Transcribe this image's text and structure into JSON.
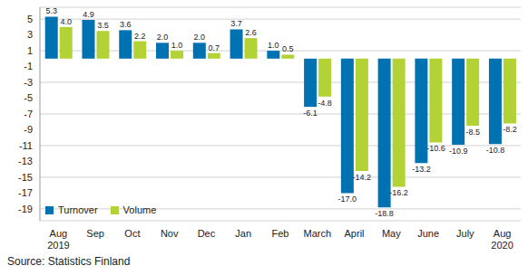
{
  "chart_data": {
    "type": "bar",
    "source": "Source: Statistics Finland",
    "categories": [
      "Aug 2019",
      "Sep",
      "Oct",
      "Nov",
      "Dec",
      "Jan",
      "Feb",
      "March",
      "April",
      "May",
      "June",
      "July",
      "Aug 2020"
    ],
    "series": [
      {
        "name": "Turnover",
        "color": "#0072b1",
        "values": [
          5.3,
          4.9,
          3.6,
          2.0,
          2.0,
          3.7,
          1.0,
          -6.1,
          -17.0,
          -18.8,
          -13.2,
          -10.9,
          -10.8
        ],
        "value_labels": [
          "5.3",
          "4.9",
          "3.6",
          "2.0",
          "2.0",
          "3.7",
          "1.0",
          "-6.1",
          "-17.0",
          "-18.8",
          "-13.2",
          "-10.9",
          "-10.8"
        ]
      },
      {
        "name": "Volume",
        "color": "#b2d235",
        "values": [
          4.0,
          3.5,
          2.2,
          1.0,
          0.7,
          2.6,
          0.5,
          -4.8,
          -14.2,
          -16.2,
          -10.6,
          -8.5,
          -8.2
        ],
        "value_labels": [
          "4.0",
          "3.5",
          "2.2",
          "1.0",
          "0.7",
          "2.6",
          "0.5",
          "-4.8",
          "-14.2",
          "-16.2",
          "-10.6",
          "-8.5",
          "-8.2"
        ]
      }
    ],
    "ylim": [
      -20.5,
      6.5
    ],
    "yticks": [
      5,
      3,
      1,
      -1,
      -3,
      -5,
      -7,
      -9,
      -11,
      -13,
      -15,
      -17,
      -19
    ],
    "grid": true,
    "data_labels": true,
    "legend": "lower left"
  }
}
